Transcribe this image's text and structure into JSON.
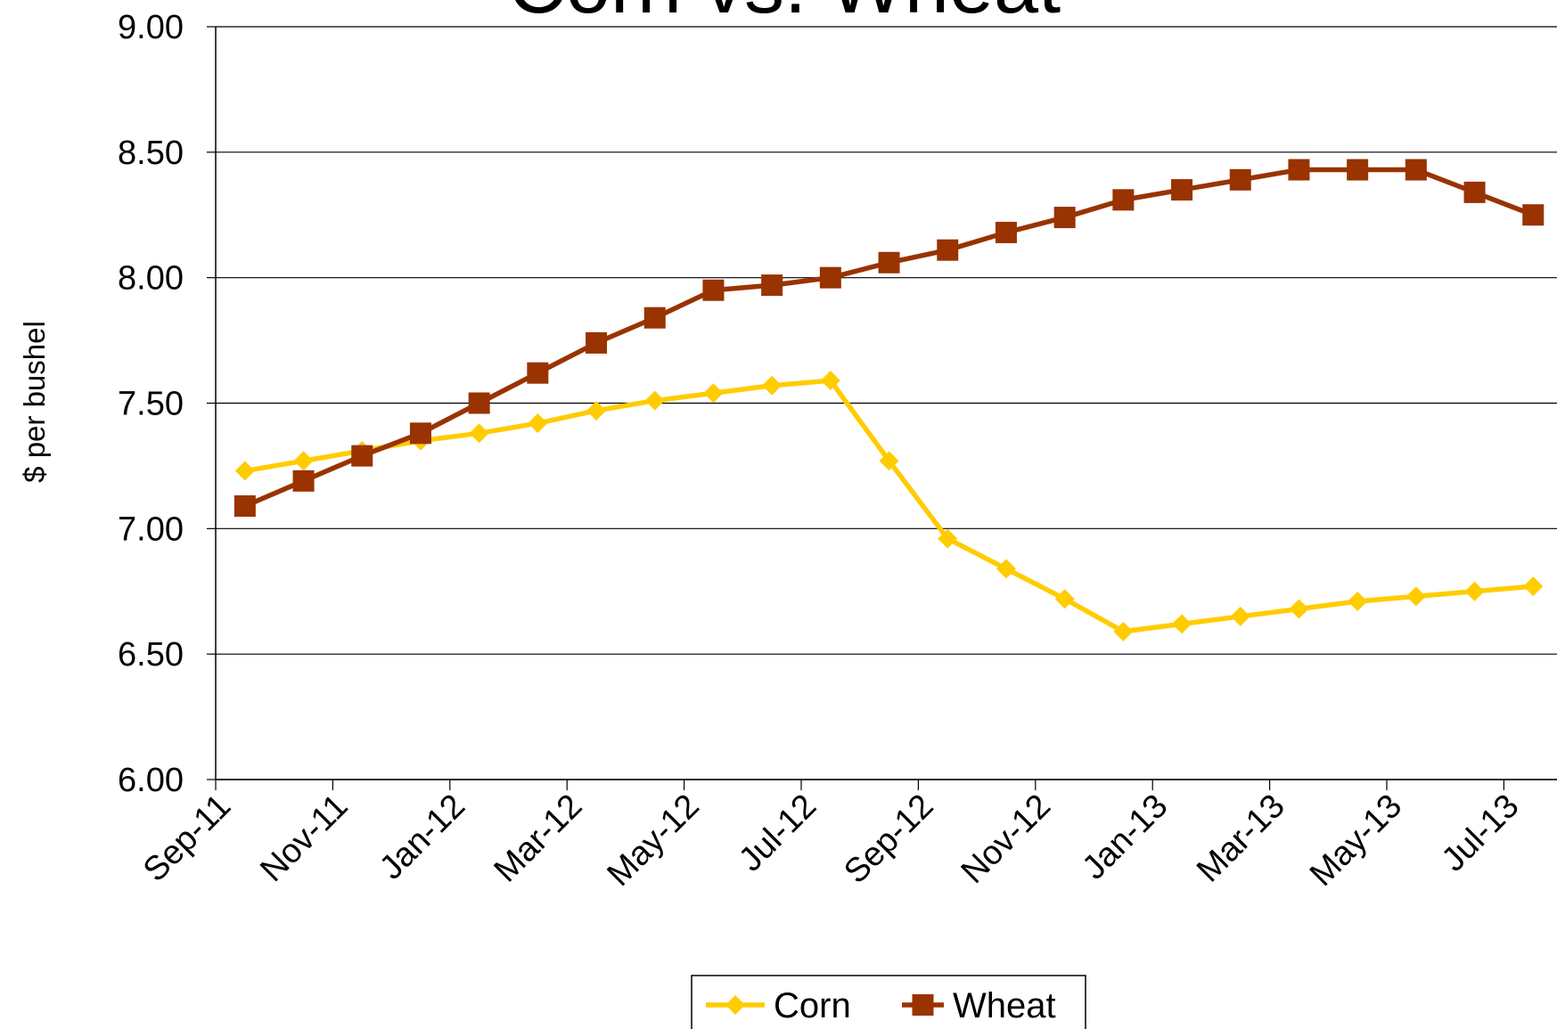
{
  "chart_data": {
    "type": "line",
    "title": "Corn vs. Wheat",
    "y_label": "$ per bushel",
    "categories": [
      "Sep-11",
      null,
      "Nov-11",
      null,
      "Jan-12",
      null,
      "Mar-12",
      null,
      "May-12",
      null,
      "Jul-12",
      null,
      "Sep-12",
      null,
      "Nov-12",
      null,
      "Jan-13",
      null,
      "Mar-13",
      null,
      "May-13",
      null,
      "Jul-13"
    ],
    "series": [
      {
        "name": "Corn",
        "color": "#FFCC00",
        "marker": "diamond",
        "values": [
          7.23,
          7.27,
          7.31,
          7.35,
          7.38,
          7.42,
          7.47,
          7.51,
          7.54,
          7.57,
          7.59,
          7.27,
          6.96,
          6.84,
          6.72,
          6.59,
          6.62,
          6.65,
          6.68,
          6.71,
          6.73,
          6.75,
          6.77
        ]
      },
      {
        "name": "Wheat",
        "color": "#993300",
        "marker": "square",
        "values": [
          7.09,
          7.19,
          7.29,
          7.38,
          7.5,
          7.62,
          7.74,
          7.84,
          7.95,
          7.97,
          8.0,
          8.06,
          8.11,
          8.18,
          8.24,
          8.31,
          8.35,
          8.39,
          8.43,
          8.43,
          8.43,
          8.34,
          8.25
        ]
      }
    ],
    "ylim": [
      6,
      9
    ],
    "yticks": [
      {
        "value": 6,
        "label": "6.00"
      },
      {
        "value": 6.5,
        "label": "6.50"
      },
      {
        "value": 7,
        "label": "7.00"
      },
      {
        "value": 7.5,
        "label": "7.50"
      },
      {
        "value": 8,
        "label": "8.00"
      },
      {
        "value": 8.5,
        "label": "8.50"
      },
      {
        "value": 9,
        "label": "9.00"
      }
    ],
    "grid": true,
    "legend": "bottom"
  }
}
